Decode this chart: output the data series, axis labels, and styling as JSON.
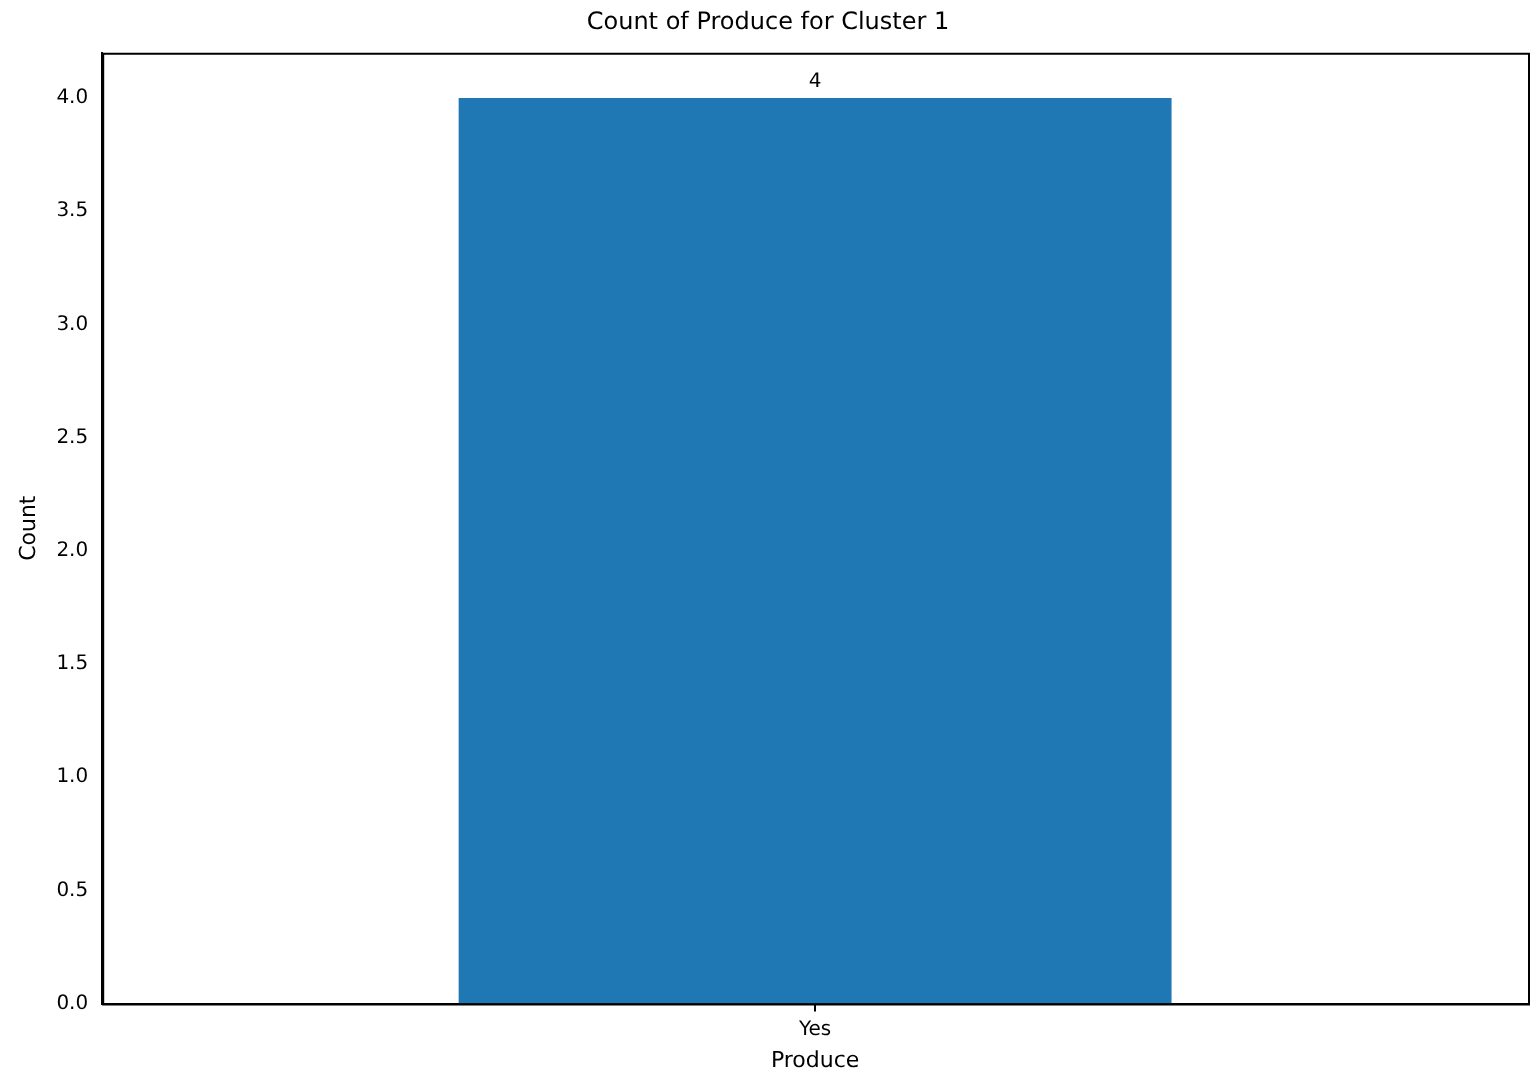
{
  "chart_data": {
    "type": "bar",
    "title": "Count of Produce for Cluster 1",
    "xlabel": "Produce",
    "ylabel": "Count",
    "categories": [
      "Yes"
    ],
    "values": [
      4
    ],
    "color": "#1f77b4",
    "ylim": [
      0,
      4.2
    ],
    "yticks": [
      {
        "value": 0,
        "label": "0.0"
      },
      {
        "value": 0.5,
        "label": "0.5"
      },
      {
        "value": 1,
        "label": "1.0"
      },
      {
        "value": 1.5,
        "label": "1.5"
      },
      {
        "value": 2,
        "label": "2.0"
      },
      {
        "value": 2.5,
        "label": "2.5"
      },
      {
        "value": 3,
        "label": "3.0"
      },
      {
        "value": 3.5,
        "label": "3.5"
      },
      {
        "value": 4,
        "label": "4.0"
      }
    ],
    "data_labels": true,
    "grid": false,
    "legend": false
  }
}
